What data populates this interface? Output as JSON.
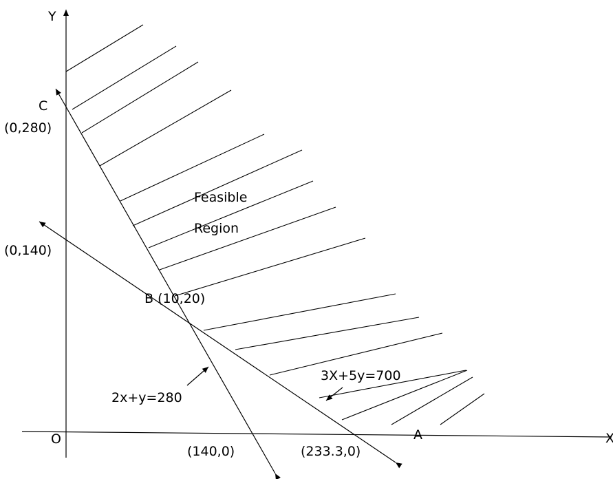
{
  "axes": {
    "x_label": "X",
    "y_label": "Y",
    "origin_label": "O"
  },
  "points": {
    "c_label": "C",
    "c_coord": "(0,280)",
    "y140_coord": "(0,140)",
    "b_label": "B (10,20)",
    "x140_coord": "(140,0)",
    "x233_coord": "(233.3,0)",
    "a_label": "A"
  },
  "region": {
    "line1": "Feasible",
    "line2": "Region"
  },
  "equations": {
    "line1": "2x+y=280",
    "line2": "3X+5y=700"
  },
  "colors": {
    "ink": "#000000",
    "background": "#ffffff"
  }
}
